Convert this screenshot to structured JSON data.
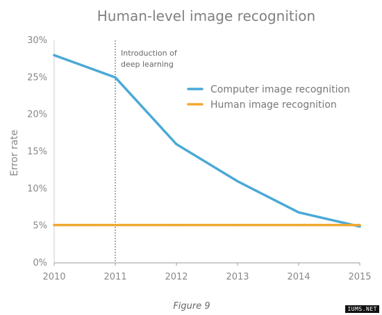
{
  "chart_data": {
    "type": "line",
    "title": "Human-level image recognition",
    "ylabel": "Error rate",
    "xlabel": "",
    "x": [
      2010,
      2011,
      2012,
      2013,
      2014,
      2015
    ],
    "xlim": [
      2010,
      2015
    ],
    "ylim": [
      0,
      30
    ],
    "y_ticks": [
      "0%",
      "5%",
      "10%",
      "15%",
      "20%",
      "25%",
      "30%"
    ],
    "x_ticks": [
      "2010",
      "2011",
      "2012",
      "2013",
      "2014",
      "2015"
    ],
    "grid": false,
    "legend_position": "right",
    "series": [
      {
        "name": "Computer image recognition",
        "color": "#4aa9d6",
        "values": [
          28,
          25,
          16,
          11,
          6.8,
          4.9
        ]
      },
      {
        "name": "Human image recognition",
        "color": "#f0a830",
        "values": [
          5.1,
          5.1,
          5.1,
          5.1,
          5.1,
          5.1
        ]
      }
    ],
    "annotation": {
      "x": 2011,
      "lines": [
        "Introduction of",
        "deep learning"
      ]
    }
  },
  "caption": "Figure 9",
  "watermark": "IUMS.NET"
}
